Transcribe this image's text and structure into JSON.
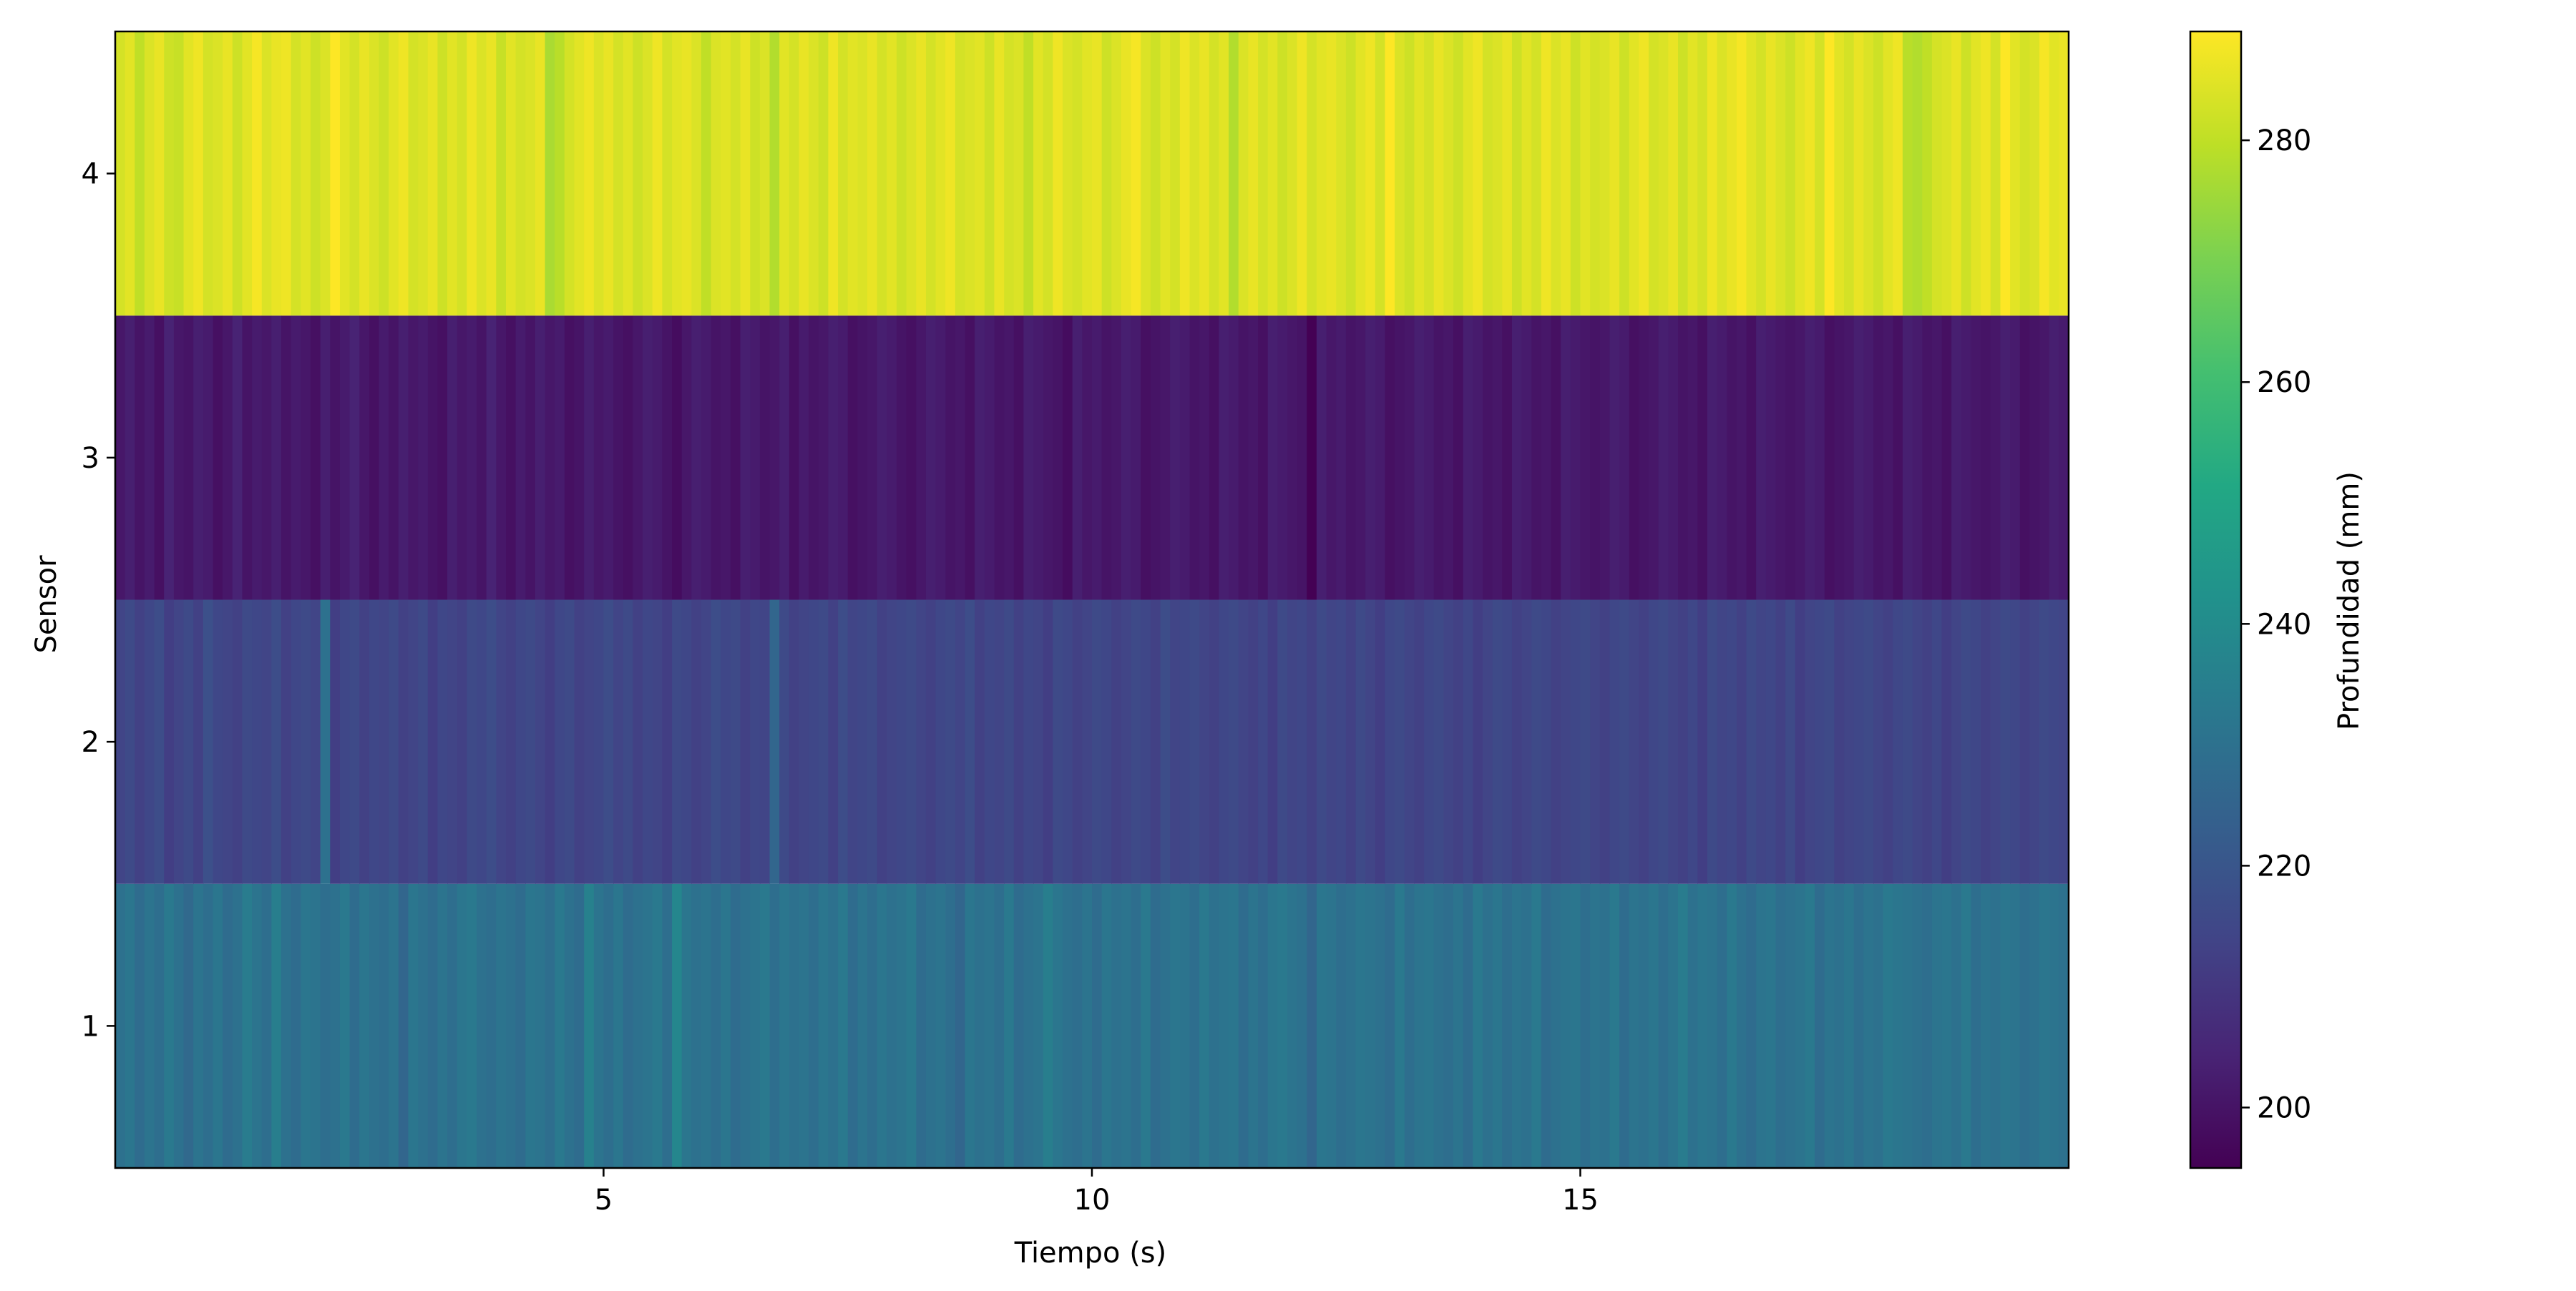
{
  "chart_data": {
    "type": "heatmap",
    "title": "",
    "xlabel": "Tiempo (s)",
    "ylabel": "Sensor",
    "colorbar_label": "Profundidad (mm)",
    "colormap": "viridis",
    "x_range": [
      0,
      20
    ],
    "y_range": [
      0.5,
      4.5
    ],
    "x_ticks": [
      5,
      10,
      15
    ],
    "y_ticks": [
      1,
      2,
      3,
      4
    ],
    "colorbar_ticks": [
      200,
      220,
      240,
      260,
      280
    ],
    "value_range": [
      195,
      289
    ],
    "time_step": 0.1,
    "rows": [
      {
        "sensor": 1,
        "values": [
          230,
          232,
          228,
          231,
          229,
          233,
          230,
          227,
          231,
          229,
          232,
          228,
          230,
          234,
          231,
          229,
          235,
          230,
          228,
          232,
          231,
          229,
          230,
          233,
          228,
          232,
          230,
          229,
          231,
          226,
          232,
          230,
          228,
          231,
          229,
          232,
          233,
          230,
          229,
          231,
          230,
          228,
          232,
          231,
          229,
          233,
          230,
          228,
          236,
          231,
          229,
          232,
          228,
          230,
          231,
          233,
          229,
          238,
          232,
          230,
          231,
          229,
          232,
          228,
          230,
          231,
          233,
          229,
          232,
          230,
          231,
          229,
          232,
          230,
          233,
          228,
          231,
          229,
          232,
          230,
          231,
          233,
          228,
          230,
          231,
          229,
          226,
          232,
          230,
          231,
          229,
          233,
          228,
          230,
          231,
          235,
          232,
          230,
          229,
          231,
          228,
          232,
          230,
          231,
          229,
          233,
          228,
          230,
          232,
          231,
          229,
          233,
          230,
          231,
          232,
          228,
          231,
          229,
          232,
          233,
          231,
          230,
          226,
          232,
          231,
          229,
          230,
          232,
          231,
          230,
          228,
          233,
          229,
          231,
          232,
          230,
          229,
          231,
          228,
          233,
          230,
          232,
          229,
          231,
          230,
          233,
          228,
          230,
          231,
          232,
          229,
          231,
          230,
          233,
          228,
          231,
          230,
          232,
          229,
          231,
          234,
          230,
          232,
          231,
          229,
          233,
          230,
          228,
          231,
          232,
          229,
          230,
          231,
          233,
          228,
          231,
          230,
          232,
          229,
          231,
          230,
          233,
          232,
          231,
          230,
          229,
          231,
          232,
          230,
          233,
          229,
          231,
          230,
          232,
          231,
          229,
          230,
          232,
          231,
          230
        ]
      },
      {
        "sensor": 2,
        "values": [
          214,
          216,
          213,
          215,
          217,
          212,
          214,
          216,
          213,
          218,
          215,
          214,
          213,
          216,
          215,
          214,
          217,
          213,
          215,
          216,
          214,
          230,
          212,
          215,
          216,
          213,
          215,
          214,
          216,
          213,
          214,
          216,
          212,
          215,
          214,
          213,
          216,
          215,
          217,
          214,
          213,
          215,
          216,
          214,
          212,
          215,
          216,
          213,
          214,
          215,
          217,
          214,
          216,
          213,
          215,
          214,
          212,
          216,
          215,
          213,
          214,
          217,
          215,
          216,
          213,
          215,
          214,
          226,
          216,
          213,
          214,
          215,
          216,
          213,
          217,
          214,
          215,
          216,
          213,
          214,
          215,
          216,
          214,
          213,
          215,
          216,
          214,
          217,
          213,
          215,
          214,
          216,
          213,
          215,
          214,
          212,
          216,
          215,
          213,
          214,
          216,
          215,
          213,
          214,
          216,
          215,
          213,
          217,
          214,
          215,
          216,
          214,
          213,
          215,
          216,
          214,
          213,
          215,
          212,
          216,
          214,
          215,
          213,
          216,
          214,
          215,
          213,
          216,
          214,
          212,
          215,
          216,
          214,
          213,
          215,
          216,
          214,
          213,
          215,
          212,
          214,
          216,
          215,
          213,
          214,
          216,
          215,
          213,
          214,
          215,
          216,
          214,
          213,
          215,
          216,
          214,
          213,
          215,
          216,
          214,
          213,
          215,
          212,
          216,
          214,
          215,
          213,
          216,
          214,
          215,
          213,
          216,
          212,
          214,
          215,
          216,
          213,
          214,
          215,
          216,
          214,
          213,
          215,
          216,
          214,
          213,
          215,
          212,
          214,
          216,
          215,
          213,
          214,
          216,
          215,
          213,
          214,
          216,
          215,
          214
        ]
      },
      {
        "sensor": 3,
        "values": [
          201,
          203,
          200,
          202,
          199,
          204,
          201,
          200,
          203,
          202,
          199,
          201,
          204,
          200,
          202,
          201,
          203,
          200,
          202,
          201,
          199,
          203,
          200,
          202,
          204,
          201,
          199,
          202,
          200,
          203,
          201,
          202,
          200,
          199,
          203,
          201,
          202,
          200,
          204,
          201,
          199,
          202,
          200,
          203,
          201,
          202,
          199,
          200,
          203,
          201,
          202,
          200,
          199,
          201,
          203,
          202,
          200,
          198,
          201,
          203,
          202,
          200,
          201,
          199,
          203,
          202,
          200,
          201,
          203,
          199,
          202,
          200,
          201,
          203,
          202,
          199,
          200,
          201,
          203,
          202,
          200,
          199,
          201,
          203,
          202,
          200,
          201,
          199,
          203,
          202,
          200,
          201,
          199,
          203,
          202,
          201,
          200,
          198,
          203,
          201,
          202,
          200,
          201,
          203,
          202,
          199,
          200,
          201,
          203,
          202,
          200,
          201,
          199,
          203,
          202,
          200,
          201,
          199,
          203,
          202,
          201,
          200,
          195,
          203,
          201,
          202,
          200,
          201,
          203,
          202,
          199,
          200,
          201,
          203,
          202,
          200,
          201,
          199,
          203,
          202,
          200,
          201,
          199,
          203,
          202,
          200,
          201,
          199,
          203,
          202,
          201,
          200,
          201,
          203,
          202,
          199,
          200,
          201,
          203,
          202,
          200,
          201,
          199,
          203,
          202,
          200,
          201,
          199,
          203,
          202,
          201,
          200,
          201,
          203,
          202,
          199,
          200,
          201,
          203,
          202,
          200,
          201,
          199,
          203,
          202,
          200,
          201,
          199,
          203,
          202,
          201,
          200,
          201,
          203,
          202,
          199,
          200,
          201,
          203,
          202
        ]
      },
      {
        "sensor": 4,
        "values": [
          283,
          285,
          280,
          284,
          286,
          282,
          281,
          285,
          287,
          283,
          284,
          286,
          282,
          285,
          288,
          284,
          286,
          287,
          283,
          285,
          282,
          284,
          289,
          285,
          283,
          286,
          284,
          282,
          285,
          287,
          283,
          284,
          286,
          282,
          285,
          283,
          287,
          284,
          286,
          281,
          285,
          283,
          284,
          286,
          277,
          279,
          283,
          285,
          287,
          284,
          286,
          283,
          285,
          282,
          284,
          287,
          283,
          285,
          286,
          284,
          280,
          284,
          285,
          283,
          286,
          282,
          284,
          278,
          285,
          283,
          286,
          284,
          282,
          287,
          283,
          285,
          284,
          286,
          283,
          285,
          282,
          284,
          286,
          283,
          285,
          287,
          283,
          284,
          285,
          282,
          286,
          283,
          284,
          280,
          285,
          283,
          287,
          284,
          283,
          285,
          286,
          282,
          284,
          286,
          288,
          284,
          282,
          285,
          283,
          287,
          284,
          286,
          283,
          285,
          278,
          284,
          286,
          283,
          285,
          282,
          284,
          287,
          283,
          285,
          286,
          284,
          282,
          285,
          287,
          283,
          289,
          284,
          282,
          285,
          283,
          286,
          284,
          282,
          285,
          287,
          283,
          284,
          286,
          282,
          285,
          283,
          287,
          284,
          286,
          282,
          285,
          283,
          284,
          286,
          282,
          285,
          287,
          283,
          284,
          286,
          282,
          285,
          283,
          287,
          284,
          286,
          288,
          285,
          283,
          286,
          284,
          282,
          285,
          287,
          283,
          289,
          285,
          283,
          286,
          284,
          282,
          285,
          287,
          279,
          278,
          280,
          283,
          284,
          286,
          282,
          285,
          287,
          283,
          289,
          285,
          283,
          284,
          288,
          285,
          286
        ]
      }
    ]
  }
}
